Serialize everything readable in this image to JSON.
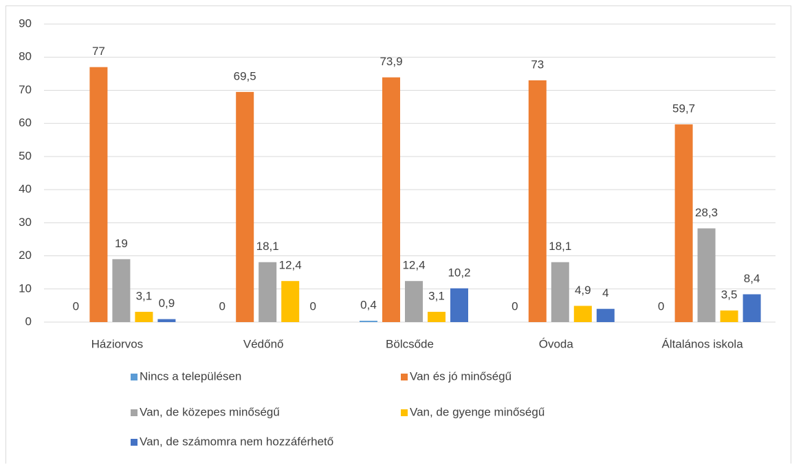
{
  "chart_data": {
    "type": "bar",
    "categories": [
      "Háziorvos",
      "Védőnő",
      "Bölcsőde",
      "Óvoda",
      "Általános iskola"
    ],
    "series": [
      {
        "name": "Nincs a településen",
        "color": "#5b9bd5",
        "values": [
          0,
          0,
          0.4,
          0,
          0
        ],
        "value_labels": [
          "0",
          "0",
          "0,4",
          "0",
          "0"
        ]
      },
      {
        "name": "Van és jó minőségű",
        "color": "#ed7d31",
        "values": [
          77,
          69.5,
          73.9,
          73,
          59.7
        ],
        "value_labels": [
          "77",
          "69,5",
          "73,9",
          "73",
          "59,7"
        ]
      },
      {
        "name": "Van, de közepes minőségű",
        "color": "#a5a5a5",
        "values": [
          19,
          18.1,
          12.4,
          18.1,
          28.3
        ],
        "value_labels": [
          "19",
          "18,1",
          "12,4",
          "18,1",
          "28,3"
        ]
      },
      {
        "name": "Van, de gyenge minőségű",
        "color": "#ffc000",
        "values": [
          3.1,
          12.4,
          3.1,
          4.9,
          3.5
        ],
        "value_labels": [
          "3,1",
          "12,4",
          "3,1",
          "4,9",
          "3,5"
        ]
      },
      {
        "name": "Van, de számomra nem hozzáférhető",
        "color": "#4472c4",
        "values": [
          0.9,
          0,
          10.2,
          4,
          8.4
        ],
        "value_labels": [
          "0,9",
          "0",
          "10,2",
          "4",
          "8,4"
        ]
      }
    ],
    "ylim": [
      0,
      90
    ],
    "yticks": [
      0,
      10,
      20,
      30,
      40,
      50,
      60,
      70,
      80,
      90
    ],
    "grid": true
  }
}
